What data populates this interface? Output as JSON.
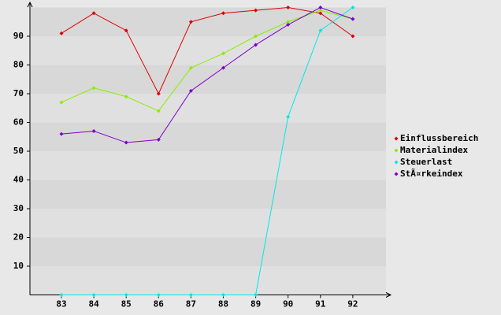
{
  "chart_data": {
    "type": "line",
    "categories": [
      "83",
      "84",
      "85",
      "86",
      "87",
      "88",
      "89",
      "90",
      "91",
      "92"
    ],
    "series": [
      {
        "name": "Einflussbereich",
        "color": "#dd0000",
        "values": [
          91,
          98,
          92,
          70,
          95,
          98,
          99,
          100,
          98,
          90
        ]
      },
      {
        "name": "Materialindex",
        "color": "#88ee00",
        "values": [
          67,
          72,
          69,
          64,
          79,
          84,
          90,
          95,
          99,
          96
        ]
      },
      {
        "name": "Steuerlast",
        "color": "#00e8e8",
        "values": [
          0,
          0,
          0,
          0,
          0,
          0,
          0,
          62,
          92,
          100
        ]
      },
      {
        "name": "StÃ¤rkeindex",
        "color": "#7a00cc",
        "values": [
          56,
          57,
          53,
          54,
          71,
          79,
          87,
          94,
          100,
          96
        ]
      }
    ],
    "ylim": [
      0,
      100
    ],
    "yticks": [
      10,
      20,
      30,
      40,
      50,
      60,
      70,
      80,
      90
    ],
    "grid": true,
    "legend": "right"
  }
}
